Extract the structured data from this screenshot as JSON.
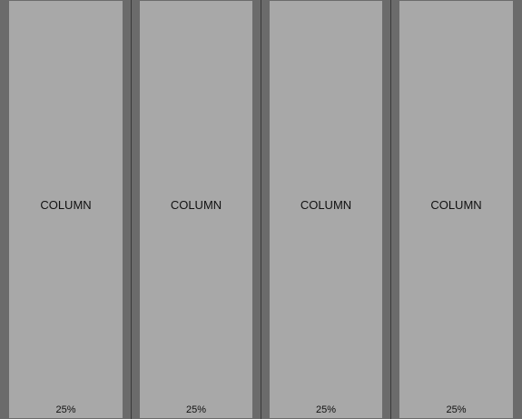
{
  "columns": [
    {
      "label": "COLUMN",
      "width": "25%"
    },
    {
      "label": "COLUMN",
      "width": "25%"
    },
    {
      "label": "COLUMN",
      "width": "25%"
    },
    {
      "label": "COLUMN",
      "width": "25%"
    }
  ],
  "colors": {
    "column_fill": "#a8a8a8",
    "gutter": "#6b6b6b",
    "divider": "#3a3a3a",
    "text": "#111111"
  }
}
